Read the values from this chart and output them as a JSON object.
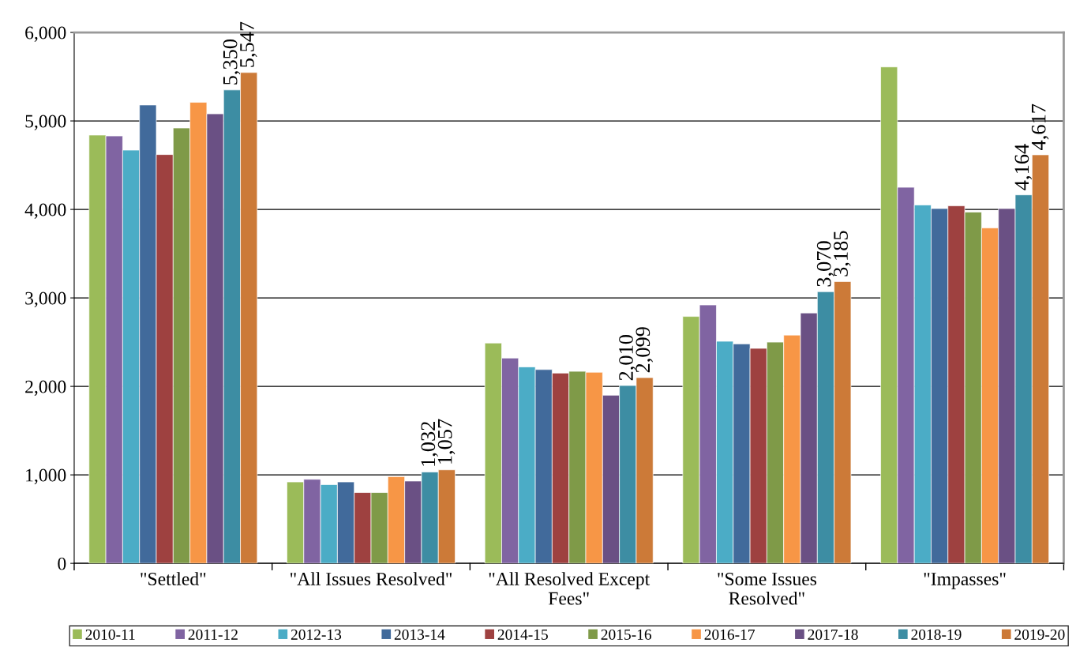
{
  "chart_data": {
    "type": "bar",
    "categories": [
      "\"Settled\"",
      "\"All Issues Resolved\"",
      "\"All Resolved Except\nFees\"",
      "\"Some Issues\nResolved\"",
      "\"Impasses\""
    ],
    "series": [
      {
        "name": "2010-11",
        "color": "#9bbb59",
        "values": [
          4840,
          920,
          2490,
          2790,
          5610
        ]
      },
      {
        "name": "2011-12",
        "color": "#8064a2",
        "values": [
          4830,
          950,
          2320,
          2920,
          4250
        ]
      },
      {
        "name": "2012-13",
        "color": "#4bacc6",
        "values": [
          4670,
          890,
          2220,
          2510,
          4050
        ]
      },
      {
        "name": "2013-14",
        "color": "#416a9b",
        "values": [
          5180,
          920,
          2190,
          2480,
          4010
        ]
      },
      {
        "name": "2014-15",
        "color": "#9e4140",
        "values": [
          4620,
          800,
          2150,
          2430,
          4040
        ]
      },
      {
        "name": "2015-16",
        "color": "#7f9a48",
        "values": [
          4920,
          800,
          2170,
          2500,
          3970
        ]
      },
      {
        "name": "2016-17",
        "color": "#f79646",
        "values": [
          5210,
          980,
          2160,
          2580,
          3790
        ]
      },
      {
        "name": "2017-18",
        "color": "#6a5084",
        "values": [
          5080,
          930,
          1900,
          2830,
          4010
        ]
      },
      {
        "name": "2018-19",
        "color": "#3d8da3",
        "values": [
          5350,
          1032,
          2010,
          3070,
          4164
        ],
        "value_labels": [
          "5,350",
          "1,032",
          "2,010",
          "3,070",
          "4,164"
        ]
      },
      {
        "name": "2019-20",
        "color": "#cc7a38",
        "values": [
          5547,
          1057,
          2099,
          3185,
          4617
        ],
        "value_labels": [
          "5,547",
          "1,057",
          "2,099",
          "3,185",
          "4,617"
        ]
      }
    ],
    "ylim": [
      0,
      6000
    ],
    "yticks": [
      {
        "value": 0,
        "label": "0"
      },
      {
        "value": 1000,
        "label": "1,000"
      },
      {
        "value": 2000,
        "label": "2,000"
      },
      {
        "value": 3000,
        "label": "3,000"
      },
      {
        "value": 4000,
        "label": "4,000"
      },
      {
        "value": 5000,
        "label": "5,000"
      },
      {
        "value": 6000,
        "label": "6,000"
      }
    ],
    "grid": "y",
    "legend": "bottom"
  }
}
